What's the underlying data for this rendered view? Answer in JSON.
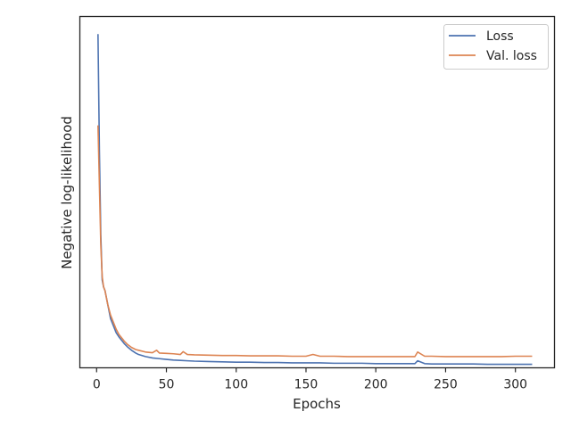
{
  "chart_data": {
    "type": "line",
    "xlabel": "Epochs",
    "ylabel": "Negative log-likelihood",
    "xlim": [
      -12,
      328
    ],
    "ylim": [
      0,
      1.0
    ],
    "y_tick_labels_visible": false,
    "x_ticks": [
      0,
      50,
      100,
      150,
      200,
      250,
      300
    ],
    "x_tick_labels": [
      "0",
      "50",
      "100",
      "150",
      "200",
      "250",
      "300"
    ],
    "grid": false,
    "legend_position": "top-right",
    "series": [
      {
        "name": "Loss",
        "color": "#4c72b0",
        "x": [
          1,
          2,
          3,
          4,
          5,
          6,
          7,
          8,
          10,
          12,
          14,
          16,
          18,
          20,
          22,
          25,
          28,
          30,
          35,
          40,
          45,
          50,
          55,
          60,
          65,
          70,
          80,
          90,
          100,
          110,
          120,
          130,
          140,
          150,
          160,
          170,
          180,
          190,
          200,
          210,
          220,
          228,
          230,
          235,
          240,
          250,
          260,
          270,
          280,
          290,
          300,
          310,
          312
        ],
        "values": [
          0.95,
          0.62,
          0.38,
          0.25,
          0.23,
          0.22,
          0.2,
          0.18,
          0.14,
          0.12,
          0.1,
          0.088,
          0.078,
          0.068,
          0.06,
          0.05,
          0.042,
          0.038,
          0.032,
          0.028,
          0.026,
          0.024,
          0.022,
          0.021,
          0.02,
          0.019,
          0.018,
          0.017,
          0.016,
          0.016,
          0.015,
          0.015,
          0.014,
          0.014,
          0.014,
          0.013,
          0.013,
          0.013,
          0.012,
          0.012,
          0.012,
          0.012,
          0.02,
          0.012,
          0.011,
          0.011,
          0.011,
          0.011,
          0.01,
          0.01,
          0.01,
          0.01,
          0.01
        ]
      },
      {
        "name": "Val. loss",
        "color": "#dd8452",
        "x": [
          1,
          2,
          3,
          4,
          5,
          6,
          7,
          8,
          10,
          12,
          14,
          16,
          18,
          20,
          22,
          25,
          28,
          30,
          35,
          40,
          43,
          45,
          50,
          55,
          60,
          62,
          65,
          70,
          80,
          90,
          100,
          110,
          120,
          130,
          140,
          150,
          155,
          160,
          170,
          180,
          190,
          200,
          210,
          220,
          228,
          230,
          235,
          240,
          250,
          260,
          270,
          280,
          290,
          300,
          310,
          312
        ],
        "values": [
          0.69,
          0.52,
          0.35,
          0.26,
          0.23,
          0.22,
          0.2,
          0.18,
          0.15,
          0.13,
          0.11,
          0.095,
          0.085,
          0.075,
          0.067,
          0.058,
          0.052,
          0.05,
          0.045,
          0.043,
          0.05,
          0.042,
          0.041,
          0.04,
          0.038,
          0.046,
          0.038,
          0.037,
          0.036,
          0.035,
          0.035,
          0.034,
          0.034,
          0.034,
          0.033,
          0.033,
          0.038,
          0.033,
          0.033,
          0.032,
          0.032,
          0.032,
          0.032,
          0.032,
          0.032,
          0.045,
          0.033,
          0.033,
          0.032,
          0.032,
          0.032,
          0.032,
          0.032,
          0.033,
          0.033,
          0.033
        ]
      }
    ]
  }
}
